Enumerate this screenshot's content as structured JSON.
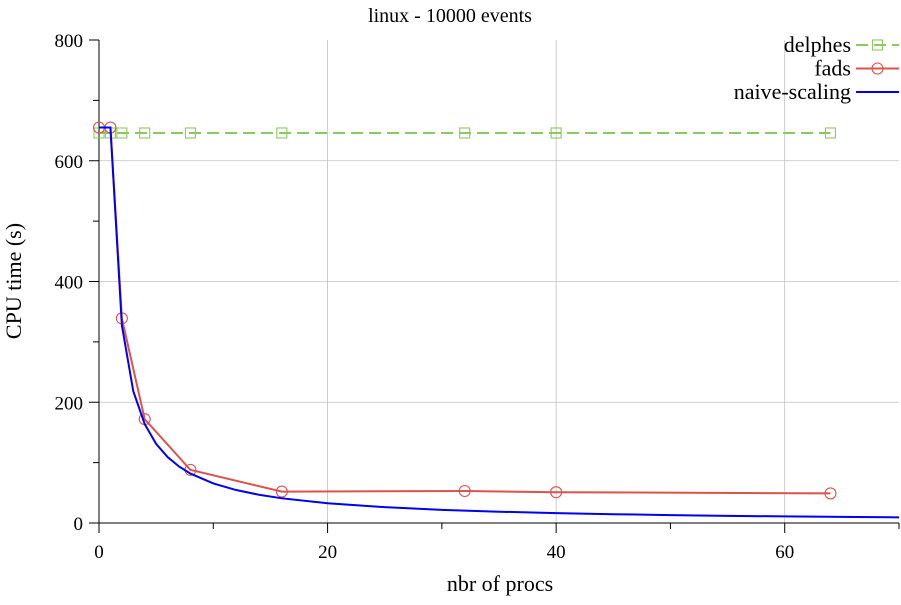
{
  "chart_data": {
    "type": "line",
    "title": "linux - 10000 events",
    "xlabel": "nbr of procs",
    "ylabel": "CPU time (s)",
    "xlim": [
      0,
      70
    ],
    "ylim": [
      0,
      800
    ],
    "x_ticks": [
      0,
      20,
      40,
      60
    ],
    "y_ticks": [
      0,
      200,
      400,
      600,
      800
    ],
    "x_minor_ticks": [
      10,
      30,
      50,
      70
    ],
    "y_minor_ticks": [
      100,
      300,
      500,
      700
    ],
    "grid": true,
    "legend_position": "top-right",
    "series": [
      {
        "name": "delphes",
        "color": "#8dc85f",
        "dash": "dashed",
        "marker": "square",
        "x": [
          0,
          1,
          2,
          4,
          8,
          16,
          32,
          40,
          64
        ],
        "y": [
          646,
          646,
          646,
          646,
          646,
          646,
          646,
          646,
          646
        ]
      },
      {
        "name": "fads",
        "color": "#d9534f",
        "dash": "solid",
        "marker": "circle",
        "x": [
          0,
          1,
          2,
          4,
          8,
          16,
          32,
          40,
          64
        ],
        "y": [
          655,
          655,
          339,
          172,
          88,
          52,
          53,
          51,
          49
        ]
      },
      {
        "name": "naive-scaling",
        "color": "#0000ee",
        "dash": "solid",
        "marker": "none",
        "x": [
          0,
          1,
          2,
          3,
          4,
          5,
          6,
          7,
          8,
          10,
          12,
          14,
          16,
          20,
          25,
          30,
          35,
          40,
          45,
          50,
          55,
          60,
          65,
          70
        ],
        "y": [
          655,
          655,
          327.5,
          218.3,
          163.8,
          131,
          109.2,
          93.6,
          81.9,
          65.5,
          54.6,
          46.8,
          40.9,
          32.8,
          26.2,
          21.8,
          18.7,
          16.4,
          14.6,
          13.1,
          11.9,
          10.9,
          10.1,
          9.4
        ]
      }
    ]
  }
}
